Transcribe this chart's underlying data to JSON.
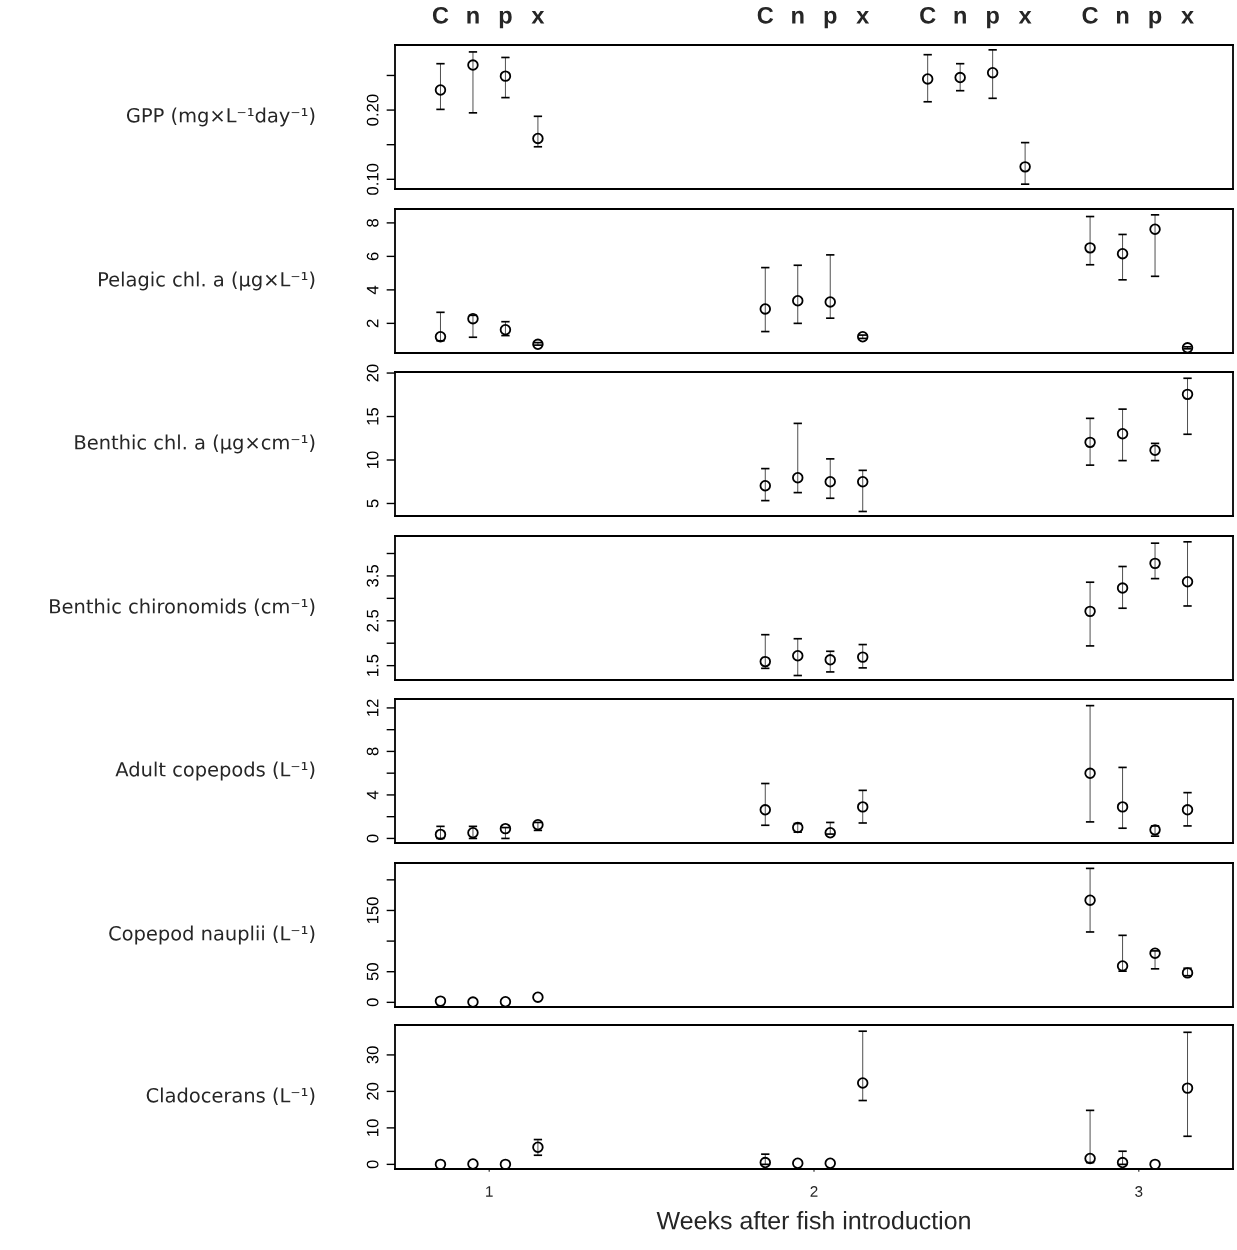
{
  "chart_data": [
    {
      "type": "scatter",
      "ylabel": "GPP (mg×L⁻¹day⁻¹)",
      "color": "#000000",
      "marker": "circle",
      "tick_labels": "y",
      "x": [
        0.85,
        0.95,
        1.05,
        1.15,
        2.35,
        2.45,
        2.55,
        2.65
      ],
      "values": [
        0.229,
        0.265,
        0.249,
        0.159,
        0.245,
        0.247,
        0.254,
        0.118
      ],
      "errors": [
        [
          0.201,
          0.267
        ],
        [
          0.196,
          0.284
        ],
        [
          0.218,
          0.276
        ],
        [
          0.147,
          0.191
        ],
        [
          0.212,
          0.28
        ],
        [
          0.228,
          0.267
        ],
        [
          0.217,
          0.287
        ],
        [
          0.093,
          0.153
        ]
      ],
      "xlim": [
        0.71,
        3.29
      ],
      "ylim": [
        0.086,
        0.294
      ],
      "yticks": [
        {
          "value": 0.1,
          "label": "0.10"
        },
        {
          "value": 0.15,
          "label": null
        },
        {
          "value": 0.2,
          "label": "0.20"
        },
        {
          "value": 0.25,
          "label": null
        }
      ],
      "annotations": [
        "C",
        "n",
        "p",
        "x",
        "C",
        "n",
        "p",
        "x",
        "C",
        "n",
        "p",
        "x",
        "C",
        "n",
        "p",
        "x"
      ]
    },
    {
      "type": "scatter",
      "ylabel": "Pelagic chl. a (µg×L⁻¹)",
      "color": "#000000",
      "marker": "circle",
      "tick_labels": "y",
      "x": [
        0.85,
        0.95,
        1.05,
        1.15,
        1.85,
        1.95,
        2.05,
        2.15,
        2.85,
        2.95,
        3.05,
        3.15
      ],
      "values": [
        1.2,
        2.28,
        1.62,
        0.75,
        2.86,
        3.35,
        3.28,
        1.2,
        6.51,
        6.16,
        7.62,
        0.54
      ],
      "errors": [
        [
          0.96,
          2.66
        ],
        [
          1.17,
          2.48
        ],
        [
          1.27,
          2.1
        ],
        [
          0.7,
          0.85
        ],
        [
          1.51,
          5.33
        ],
        [
          2.0,
          5.47
        ],
        [
          2.31,
          6.09
        ],
        [
          1.1,
          1.3
        ],
        [
          5.5,
          8.38
        ],
        [
          4.6,
          7.31
        ],
        [
          4.81,
          8.48
        ],
        [
          0.48,
          0.6
        ]
      ],
      "xlim": [
        0.71,
        3.29
      ],
      "ylim": [
        0.23,
        8.83
      ],
      "yticks": [
        2,
        4,
        6,
        8
      ]
    },
    {
      "type": "scatter",
      "ylabel": "Benthic chl. a (µg×cm⁻¹)",
      "color": "#000000",
      "marker": "circle",
      "tick_labels": "y",
      "x": [
        1.85,
        1.95,
        2.05,
        2.15,
        2.85,
        2.95,
        3.05,
        3.15
      ],
      "values": [
        7.04,
        7.96,
        7.5,
        7.5,
        12.03,
        13.02,
        11.12,
        17.55
      ],
      "errors": [
        [
          5.33,
          9.01
        ],
        [
          6.25,
          14.21
        ],
        [
          5.6,
          10.13
        ],
        [
          4.08,
          8.81
        ],
        [
          9.41,
          14.79
        ],
        [
          9.93,
          15.85
        ],
        [
          9.93,
          11.91
        ],
        [
          12.96,
          19.4
        ]
      ],
      "xlim": [
        0.71,
        3.29
      ],
      "ylim": [
        3.56,
        20.12
      ],
      "yticks": [
        5,
        10,
        15,
        20
      ]
    },
    {
      "type": "scatter",
      "ylabel": "Benthic chironomids (cm⁻¹)",
      "color": "#000000",
      "marker": "circle",
      "tick_labels": "y",
      "x": [
        1.85,
        1.95,
        2.05,
        2.15,
        2.85,
        2.95,
        3.05,
        3.15
      ],
      "values": [
        1.59,
        1.72,
        1.63,
        1.69,
        2.71,
        3.23,
        3.78,
        3.37
      ],
      "errors": [
        [
          1.44,
          2.19
        ],
        [
          1.28,
          2.1
        ],
        [
          1.36,
          1.82
        ],
        [
          1.45,
          1.97
        ],
        [
          1.94,
          3.36
        ],
        [
          2.78,
          3.71
        ],
        [
          3.44,
          4.23
        ],
        [
          2.83,
          4.26
        ]
      ],
      "xlim": [
        0.71,
        3.29
      ],
      "ylim": [
        1.18,
        4.39
      ],
      "yticks": [
        1.5,
        {
          "value": 2.0,
          "label": null
        },
        2.5,
        {
          "value": 3.0,
          "label": null
        },
        3.5,
        {
          "value": 4.0,
          "label": null
        }
      ]
    },
    {
      "type": "scatter",
      "ylabel": "Adult copepods (L⁻¹)",
      "color": "#000000",
      "marker": "circle",
      "tick_labels": "y",
      "x": [
        0.85,
        0.95,
        1.05,
        1.15,
        1.85,
        1.95,
        2.05,
        2.15,
        2.85,
        2.95,
        3.05,
        3.15
      ],
      "values": [
        0.37,
        0.52,
        0.9,
        1.26,
        2.63,
        1.0,
        0.52,
        2.9,
        5.99,
        2.9,
        0.79,
        2.63
      ],
      "errors": [
        [
          0.0,
          1.11
        ],
        [
          0.0,
          1.11
        ],
        [
          0.0,
          1.0
        ],
        [
          0.74,
          1.47
        ],
        [
          1.21,
          5.05
        ],
        [
          0.58,
          1.37
        ],
        [
          0.4,
          1.47
        ],
        [
          1.42,
          4.42
        ],
        [
          1.52,
          12.21
        ],
        [
          0.94,
          6.53
        ],
        [
          0.21,
          1.15
        ],
        [
          1.15,
          4.21
        ]
      ],
      "xlim": [
        0.71,
        3.29
      ],
      "ylim": [
        -0.42,
        12.82
      ],
      "yticks": [
        0,
        {
          "value": 2,
          "label": null
        },
        4,
        {
          "value": 6,
          "label": null
        },
        8,
        {
          "value": 10,
          "label": null
        },
        12
      ]
    },
    {
      "type": "scatter",
      "ylabel": "Copepod nauplii (L⁻¹)",
      "color": "#000000",
      "marker": "circle",
      "tick_labels": "y",
      "x": [
        0.85,
        0.95,
        1.05,
        1.15,
        2.85,
        2.95,
        3.05,
        3.15
      ],
      "values": [
        2,
        0.5,
        1,
        8.4,
        166.8,
        59.4,
        80.1,
        48.1
      ],
      "errors": [
        null,
        null,
        null,
        null,
        [
          114.9,
          218.7
        ],
        [
          50.9,
          109.4
        ],
        [
          54.7,
          84
        ],
        [
          43.5,
          55.7
        ]
      ],
      "xlim": [
        0.71,
        3.29
      ],
      "ylim": [
        -7.6,
        227.5
      ],
      "yticks": [
        0,
        50,
        {
          "value": 100,
          "label": null
        },
        150,
        {
          "value": 200,
          "label": null
        }
      ]
    },
    {
      "type": "scatter",
      "ylabel": "Cladocerans (L⁻¹)",
      "xlabel": "Weeks after fish introduction",
      "color": "#000000",
      "marker": "circle",
      "x": [
        0.85,
        0.95,
        1.05,
        1.15,
        1.85,
        1.95,
        2.05,
        2.15,
        2.85,
        2.95,
        3.05,
        3.15
      ],
      "values": [
        0,
        0.1,
        0,
        4.7,
        0.5,
        0.3,
        0.3,
        22.3,
        1.6,
        0.5,
        0,
        20.9
      ],
      "errors": [
        null,
        null,
        null,
        [
          2.5,
          6.8
        ],
        [
          0,
          2.8
        ],
        null,
        null,
        [
          17.5,
          36.5
        ],
        [
          0.5,
          14.8
        ],
        [
          0,
          3.6
        ],
        null,
        [
          7.7,
          36.2
        ]
      ],
      "xlim": [
        0.71,
        3.29
      ],
      "ylim": [
        -1.27,
        38.2
      ],
      "xticks": [
        1,
        2,
        3
      ],
      "yticks": [
        0,
        10,
        20,
        30
      ]
    }
  ]
}
